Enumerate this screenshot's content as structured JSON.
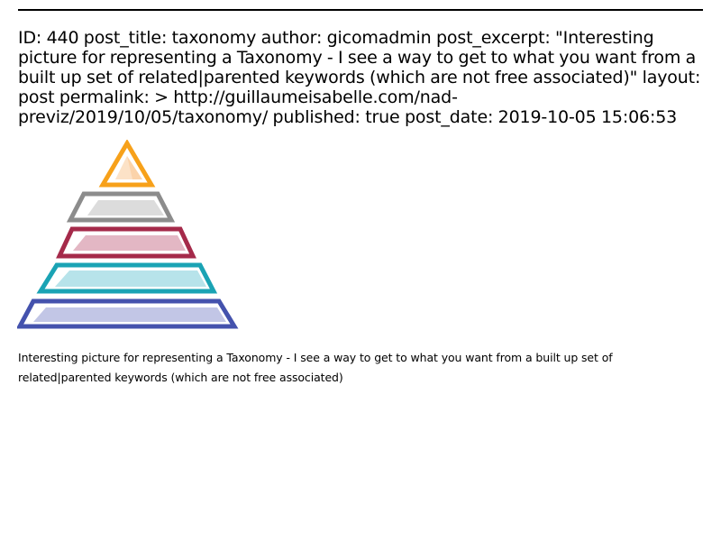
{
  "post": {
    "front_matter": "ID: 440 post_title: taxonomy author: gicomadmin post_excerpt: \"Interesting picture for representing a Taxonomy - I see a way to get to what you want from a built up set of related|parented keywords (which are not free associated)\" layout: post permalink: > http://guillaumeisabelle.com/nad-previz/2019/10/05/taxonomy/ published: true post_date: 2019-10-05 15:06:53",
    "caption": "Interesting picture for representing a Taxonomy - I see a way to get to what you want from a built up set of related|parented keywords (which are not free associated)"
  },
  "pyramid": {
    "levels": [
      {
        "name": "top",
        "stroke": "#f7a11a",
        "fill": "#fbd3aa"
      },
      {
        "name": "second",
        "stroke": "#8c8c8c",
        "fill": "#dcdcdc"
      },
      {
        "name": "third",
        "stroke": "#a52a4a",
        "fill": "#e3b7c4"
      },
      {
        "name": "fourth",
        "stroke": "#1aa3b4",
        "fill": "#b7e3ea"
      },
      {
        "name": "bottom",
        "stroke": "#4452ad",
        "fill": "#c2c6e6"
      }
    ]
  }
}
